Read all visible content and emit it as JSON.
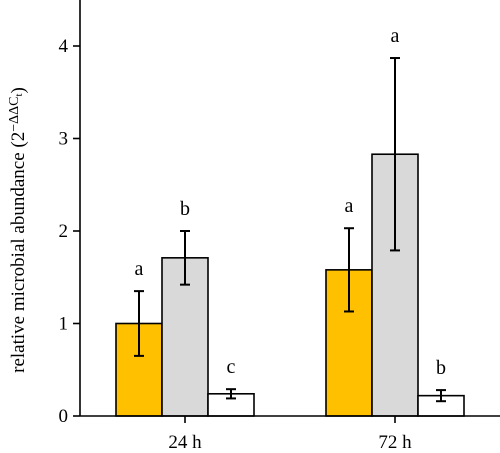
{
  "chart_data": {
    "type": "bar",
    "categories": [
      "24 h",
      "72 h"
    ],
    "ylabel_main": "relative microbial abundance (2",
    "ylabel_sup": "−ΔΔC",
    "ylabel_sub": "t",
    "ylabel_close": ")",
    "ylim": [
      0,
      4.5
    ],
    "yticks": [
      0,
      1,
      2,
      3,
      4
    ],
    "series": [
      {
        "color": "#FFC000",
        "values": [
          1.0,
          1.58
        ],
        "errors": [
          0.35,
          0.45
        ],
        "sig": [
          "a",
          "a"
        ]
      },
      {
        "color": "#D9D9D9",
        "values": [
          1.71,
          2.83
        ],
        "errors": [
          0.29,
          1.04
        ],
        "sig": [
          "b",
          "a"
        ]
      },
      {
        "color": "#FFFFFF",
        "values": [
          0.24,
          0.22
        ],
        "errors": [
          0.05,
          0.06
        ],
        "sig": [
          "c",
          "b"
        ]
      }
    ]
  }
}
